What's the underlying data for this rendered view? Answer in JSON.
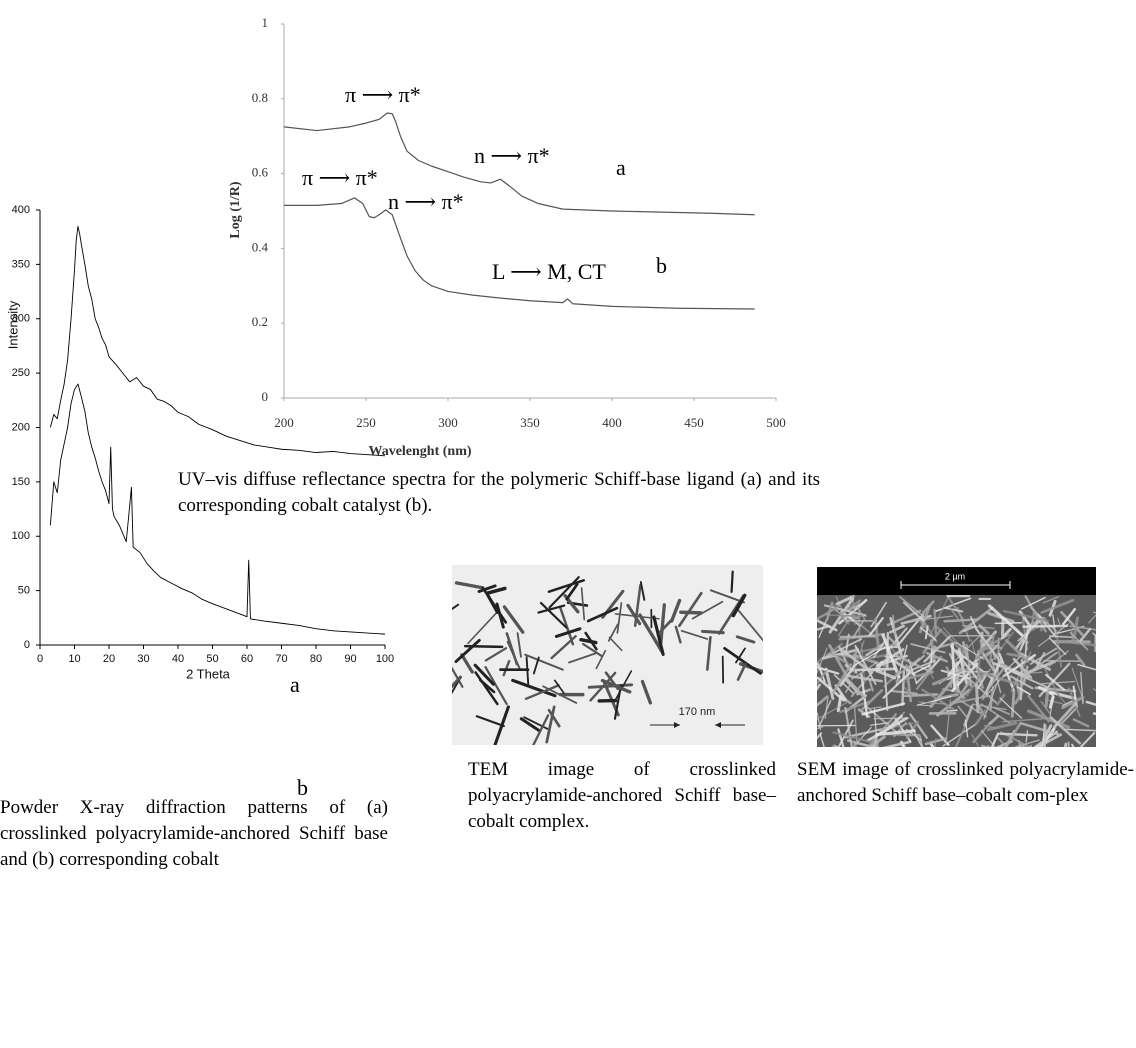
{
  "chart_data": [
    {
      "type": "line",
      "x_label": "Wavelenght (nm)",
      "y_label": "Log (1/R)",
      "xlim": [
        200,
        500
      ],
      "xticks": [
        200,
        250,
        300,
        350,
        400,
        450,
        500
      ],
      "ylim": [
        0,
        1
      ],
      "yticks": [
        0,
        0.2,
        0.4,
        0.6,
        0.8,
        1
      ],
      "series": [
        {
          "name": "a",
          "color": "#555555",
          "x": [
            200,
            220,
            240,
            250,
            258,
            263,
            266,
            268,
            271,
            275,
            282,
            290,
            300,
            310,
            320,
            326,
            332,
            338,
            345,
            355,
            370,
            400,
            430,
            460,
            487
          ],
          "values": [
            0.725,
            0.715,
            0.725,
            0.735,
            0.745,
            0.762,
            0.76,
            0.74,
            0.7,
            0.66,
            0.635,
            0.62,
            0.605,
            0.59,
            0.578,
            0.575,
            0.585,
            0.565,
            0.54,
            0.52,
            0.505,
            0.5,
            0.497,
            0.494,
            0.49
          ]
        },
        {
          "name": "b",
          "color": "#555555",
          "x": [
            200,
            220,
            235,
            243,
            248,
            252,
            255,
            258,
            262,
            266,
            270,
            275,
            280,
            285,
            290,
            300,
            315,
            330,
            350,
            370,
            373,
            376,
            400,
            440,
            487
          ],
          "values": [
            0.515,
            0.515,
            0.52,
            0.535,
            0.52,
            0.485,
            0.482,
            0.49,
            0.503,
            0.49,
            0.44,
            0.38,
            0.34,
            0.315,
            0.3,
            0.285,
            0.275,
            0.268,
            0.26,
            0.255,
            0.265,
            0.252,
            0.245,
            0.24,
            0.238
          ]
        }
      ],
      "annotations": [
        "π ⟶ π*",
        "n ⟶ π*",
        "π ⟶ π*",
        "n ⟶ π*",
        "L ⟶ M, CT"
      ],
      "caption": "UV–vis diffuse reflectance spectra for the polymeric Schiff-base ligand (a) and its corresponding cobalt catalyst (b)."
    },
    {
      "type": "line",
      "x_label": "2 Theta",
      "y_label": "Intensity",
      "xlim": [
        0,
        100
      ],
      "xticks": [
        0,
        10,
        20,
        30,
        40,
        50,
        60,
        70,
        80,
        90,
        100
      ],
      "ylim": [
        0,
        400
      ],
      "yticks": [
        0,
        50,
        100,
        150,
        200,
        250,
        300,
        350,
        400
      ],
      "series": [
        {
          "name": "a",
          "color": "#000000",
          "x": [
            3,
            4,
            5,
            6,
            7,
            8,
            9,
            10,
            10.5,
            11,
            11.5,
            12,
            13,
            14,
            15,
            16,
            17,
            18,
            19,
            20,
            22,
            24,
            26,
            28,
            30,
            32,
            34,
            36,
            38,
            40,
            43,
            46,
            50,
            54,
            58,
            62,
            66,
            70,
            75,
            80,
            85,
            90,
            95,
            100
          ],
          "values": [
            200,
            212,
            208,
            225,
            240,
            262,
            300,
            345,
            372,
            385,
            378,
            368,
            350,
            330,
            318,
            300,
            292,
            282,
            276,
            265,
            258,
            250,
            242,
            246,
            238,
            235,
            226,
            224,
            220,
            214,
            210,
            203,
            198,
            192,
            188,
            184,
            182,
            180,
            179,
            177,
            178,
            176,
            175,
            174
          ]
        },
        {
          "name": "b",
          "color": "#000000",
          "x": [
            3,
            4,
            5,
            6,
            7,
            8,
            9,
            10,
            11,
            12,
            13,
            14,
            15,
            16,
            17,
            18,
            19,
            20,
            20.5,
            21,
            21.5,
            23,
            25,
            26.5,
            27,
            29,
            31,
            33,
            35,
            38,
            41,
            44,
            47,
            50,
            55,
            60,
            60.5,
            61,
            65,
            70,
            75,
            80,
            85,
            90,
            95,
            100
          ],
          "values": [
            110,
            150,
            140,
            170,
            185,
            200,
            222,
            235,
            240,
            228,
            215,
            195,
            182,
            172,
            160,
            150,
            142,
            130,
            182,
            125,
            118,
            110,
            95,
            145,
            90,
            85,
            75,
            68,
            62,
            57,
            52,
            48,
            42,
            38,
            32,
            26,
            78,
            24,
            22,
            20,
            18,
            15,
            13,
            12,
            11,
            10
          ]
        }
      ],
      "caption": "Powder X-ray diffraction patterns of (a) crosslinked polyacrylamide-anchored Schiff base and (b) corresponding cobalt"
    }
  ],
  "figures": [
    {
      "scale_bar": "170 nm",
      "caption": "TEM image of crosslinked polyacrylamide-anchored Schiff base–cobalt complex."
    },
    {
      "scale_bar": "2 µm",
      "caption": "SEM image of crosslinked polyacrylamide-anchored Schiff base–cobalt com-plex"
    }
  ]
}
